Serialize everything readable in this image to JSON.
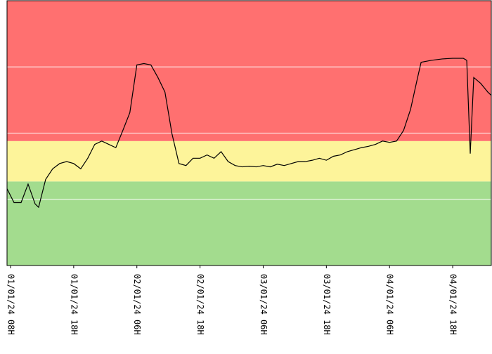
{
  "chart_data": {
    "type": "line",
    "xlim": [
      0,
      690
    ],
    "ylim": [
      0,
      4
    ],
    "yticks": [
      1,
      2,
      3
    ],
    "grid": true,
    "xticks": [
      {
        "value": 5,
        "label": "01/01/24 08H"
      },
      {
        "value": 95,
        "label": "01/01/24 18H"
      },
      {
        "value": 185,
        "label": "02/01/24 06H"
      },
      {
        "value": 275,
        "label": "02/01/24 18H"
      },
      {
        "value": 365,
        "label": "03/01/24 06H"
      },
      {
        "value": 455,
        "label": "03/01/24 18H"
      },
      {
        "value": 545,
        "label": "04/01/24 06H"
      },
      {
        "value": 635,
        "label": "04/01/24 18H"
      }
    ],
    "bands": [
      {
        "from": 0,
        "to": 1.27,
        "color": "#a3dc8e"
      },
      {
        "from": 1.27,
        "to": 1.88,
        "color": "#fdf49a"
      },
      {
        "from": 1.88,
        "to": 4,
        "color": "#ff7070"
      }
    ],
    "series": [
      {
        "color": "#000000",
        "x": [
          0,
          10,
          20,
          30,
          40,
          45,
          55,
          65,
          75,
          85,
          95,
          105,
          115,
          125,
          135,
          145,
          155,
          165,
          175,
          185,
          195,
          205,
          215,
          225,
          235,
          245,
          255,
          265,
          275,
          285,
          295,
          305,
          315,
          325,
          335,
          345,
          355,
          365,
          375,
          385,
          395,
          405,
          415,
          425,
          435,
          445,
          455,
          465,
          475,
          485,
          495,
          505,
          515,
          525,
          535,
          545,
          555,
          565,
          575,
          585,
          590,
          605,
          620,
          635,
          650,
          655,
          660,
          665,
          675,
          685,
          690
        ],
        "values": [
          1.16,
          0.95,
          0.95,
          1.23,
          0.93,
          0.88,
          1.3,
          1.46,
          1.54,
          1.57,
          1.54,
          1.46,
          1.62,
          1.83,
          1.88,
          1.83,
          1.78,
          2.04,
          2.31,
          3.03,
          3.05,
          3.03,
          2.84,
          2.62,
          1.99,
          1.54,
          1.51,
          1.62,
          1.62,
          1.67,
          1.62,
          1.72,
          1.57,
          1.51,
          1.49,
          1.5,
          1.49,
          1.51,
          1.49,
          1.53,
          1.51,
          1.54,
          1.57,
          1.57,
          1.59,
          1.62,
          1.59,
          1.65,
          1.67,
          1.72,
          1.75,
          1.78,
          1.8,
          1.83,
          1.88,
          1.86,
          1.88,
          2.04,
          2.36,
          2.84,
          3.07,
          3.1,
          3.12,
          3.13,
          3.13,
          3.1,
          1.69,
          2.84,
          2.75,
          2.62,
          2.57
        ]
      }
    ]
  }
}
